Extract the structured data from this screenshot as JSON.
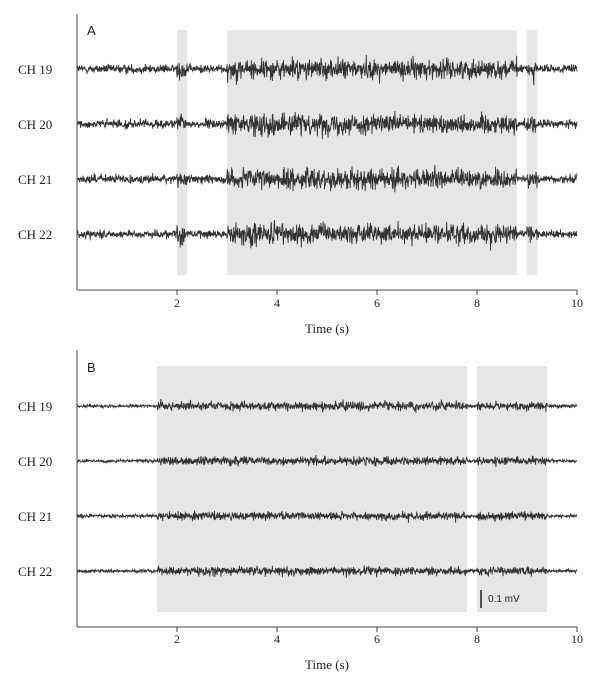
{
  "chart_data": [
    {
      "panel": "A",
      "type": "line",
      "xlabel": "Time (s)",
      "xlim": [
        0,
        10
      ],
      "xticks": [
        2,
        4,
        6,
        8,
        10
      ],
      "channels": [
        "CH 19",
        "CH 20",
        "CH 21",
        "CH 22"
      ],
      "highlight_intervals": [
        [
          2.0,
          2.2
        ],
        [
          3.0,
          8.8
        ],
        [
          9.0,
          9.2
        ]
      ],
      "baseline_amplitude_mV": 0.04,
      "active_amplitude_mV": 0.09,
      "series_color": "#333333",
      "shade_color": "#e6e6e6"
    },
    {
      "panel": "B",
      "type": "line",
      "xlabel": "Time (s)",
      "xlim": [
        0,
        10
      ],
      "xticks": [
        2,
        4,
        6,
        8,
        10
      ],
      "channels": [
        "CH 19",
        "CH 20",
        "CH 21",
        "CH 22"
      ],
      "highlight_intervals": [
        [
          1.6,
          7.8
        ],
        [
          8.0,
          9.4
        ]
      ],
      "baseline_amplitude_mV": 0.015,
      "active_amplitude_mV": 0.04,
      "scale_bar": {
        "value_mV": 0.1,
        "label": "0.1 mV"
      },
      "series_color": "#333333",
      "shade_color": "#e6e6e6"
    }
  ]
}
